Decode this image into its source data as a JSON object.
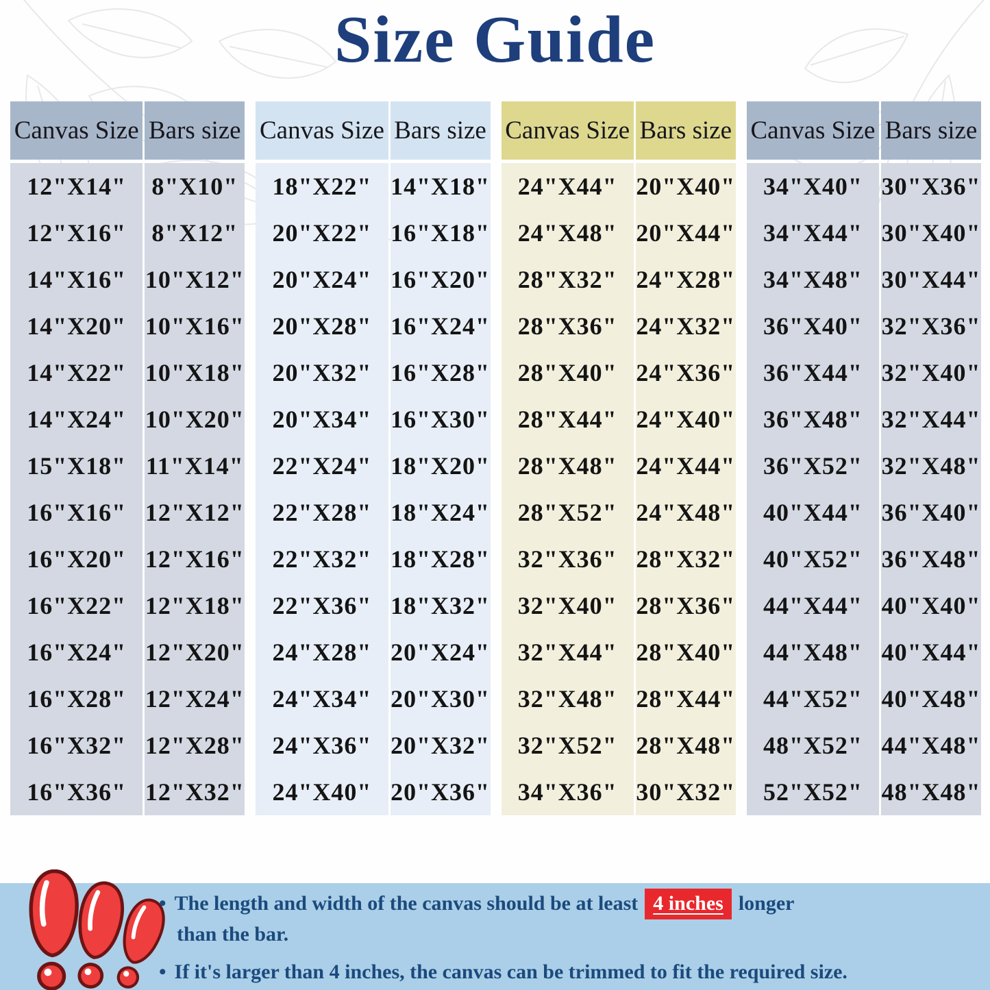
{
  "title": "Size Guide",
  "tables": [
    {
      "canvas_header": "Canvas Size",
      "bars_header": "Bars size",
      "rows": [
        {
          "canvas": "12\"X14\"",
          "bars": "8\"X10\""
        },
        {
          "canvas": "12\"X16\"",
          "bars": "8\"X12\""
        },
        {
          "canvas": "14\"X16\"",
          "bars": "10\"X12\""
        },
        {
          "canvas": "14\"X20\"",
          "bars": "10\"X16\""
        },
        {
          "canvas": "14\"X22\"",
          "bars": "10\"X18\""
        },
        {
          "canvas": "14\"X24\"",
          "bars": "10\"X20\""
        },
        {
          "canvas": "15\"X18\"",
          "bars": "11\"X14\""
        },
        {
          "canvas": "16\"X16\"",
          "bars": "12\"X12\""
        },
        {
          "canvas": "16\"X20\"",
          "bars": "12\"X16\""
        },
        {
          "canvas": "16\"X22\"",
          "bars": "12\"X18\""
        },
        {
          "canvas": "16\"X24\"",
          "bars": "12\"X20\""
        },
        {
          "canvas": "16\"X28\"",
          "bars": "12\"X24\""
        },
        {
          "canvas": "16\"X32\"",
          "bars": "12\"X28\""
        },
        {
          "canvas": "16\"X36\"",
          "bars": "12\"X32\""
        }
      ]
    },
    {
      "canvas_header": "Canvas Size",
      "bars_header": "Bars size",
      "rows": [
        {
          "canvas": "18\"X22\"",
          "bars": "14\"X18\""
        },
        {
          "canvas": "20\"X22\"",
          "bars": "16\"X18\""
        },
        {
          "canvas": "20\"X24\"",
          "bars": "16\"X20\""
        },
        {
          "canvas": "20\"X28\"",
          "bars": "16\"X24\""
        },
        {
          "canvas": "20\"X32\"",
          "bars": "16\"X28\""
        },
        {
          "canvas": "20\"X34\"",
          "bars": "16\"X30\""
        },
        {
          "canvas": "22\"X24\"",
          "bars": "18\"X20\""
        },
        {
          "canvas": "22\"X28\"",
          "bars": "18\"X24\""
        },
        {
          "canvas": "22\"X32\"",
          "bars": "18\"X28\""
        },
        {
          "canvas": "22\"X36\"",
          "bars": "18\"X32\""
        },
        {
          "canvas": "24\"X28\"",
          "bars": "20\"X24\""
        },
        {
          "canvas": "24\"X34\"",
          "bars": "20\"X30\""
        },
        {
          "canvas": "24\"X36\"",
          "bars": "20\"X32\""
        },
        {
          "canvas": "24\"X40\"",
          "bars": "20\"X36\""
        }
      ]
    },
    {
      "canvas_header": "Canvas Size",
      "bars_header": "Bars size",
      "rows": [
        {
          "canvas": "24\"X44\"",
          "bars": "20\"X40\""
        },
        {
          "canvas": "24\"X48\"",
          "bars": "20\"X44\""
        },
        {
          "canvas": "28\"X32\"",
          "bars": "24\"X28\""
        },
        {
          "canvas": "28\"X36\"",
          "bars": "24\"X32\""
        },
        {
          "canvas": "28\"X40\"",
          "bars": "24\"X36\""
        },
        {
          "canvas": "28\"X44\"",
          "bars": "24\"X40\""
        },
        {
          "canvas": "28\"X48\"",
          "bars": "24\"X44\""
        },
        {
          "canvas": "28\"X52\"",
          "bars": "24\"X48\""
        },
        {
          "canvas": "32\"X36\"",
          "bars": "28\"X32\""
        },
        {
          "canvas": "32\"X40\"",
          "bars": "28\"X36\""
        },
        {
          "canvas": "32\"X44\"",
          "bars": "28\"X40\""
        },
        {
          "canvas": "32\"X48\"",
          "bars": "28\"X44\""
        },
        {
          "canvas": "32\"X52\"",
          "bars": "28\"X48\""
        },
        {
          "canvas": "34\"X36\"",
          "bars": "30\"X32\""
        }
      ]
    },
    {
      "canvas_header": "Canvas Size",
      "bars_header": "Bars size",
      "rows": [
        {
          "canvas": "34\"X40\"",
          "bars": "30\"X36\""
        },
        {
          "canvas": "34\"X44\"",
          "bars": "30\"X40\""
        },
        {
          "canvas": "34\"X48\"",
          "bars": "30\"X44\""
        },
        {
          "canvas": "36\"X40\"",
          "bars": "32\"X36\""
        },
        {
          "canvas": "36\"X44\"",
          "bars": "32\"X40\""
        },
        {
          "canvas": "36\"X48\"",
          "bars": "32\"X44\""
        },
        {
          "canvas": "36\"X52\"",
          "bars": "32\"X48\""
        },
        {
          "canvas": "40\"X44\"",
          "bars": "36\"X40\""
        },
        {
          "canvas": "40\"X52\"",
          "bars": "36\"X48\""
        },
        {
          "canvas": "44\"X44\"",
          "bars": "40\"X40\""
        },
        {
          "canvas": "44\"X48\"",
          "bars": "40\"X44\""
        },
        {
          "canvas": "44\"X52\"",
          "bars": "40\"X48\""
        },
        {
          "canvas": "48\"X52\"",
          "bars": "44\"X48\""
        },
        {
          "canvas": "52\"X52\"",
          "bars": "48\"X48\""
        }
      ]
    }
  ],
  "notes": {
    "bullet_char": "•",
    "note1_pre": "The length and width of the canvas should be at least",
    "note1_highlight": "4 inches",
    "note1_post": "longer",
    "note1_line2": "than the bar.",
    "note2": "If it's larger than 4 inches, the canvas can be trimmed to fit the required size."
  },
  "colors": {
    "title_navy": "#1e3e7c",
    "note_blue": "#1b4a7c",
    "highlight_red": "#e8282d",
    "strip_blue": "#abcfe8",
    "table_gray_header": "#a8b6ca",
    "table_gray_body": "#d3d8e2",
    "table_blue_header": "#d3e3f1",
    "table_blue_body": "#e7eef7",
    "table_khaki_header": "#ded88f",
    "table_cream_body": "#f2efdc",
    "exclamation_red": "#ee3e3e"
  }
}
